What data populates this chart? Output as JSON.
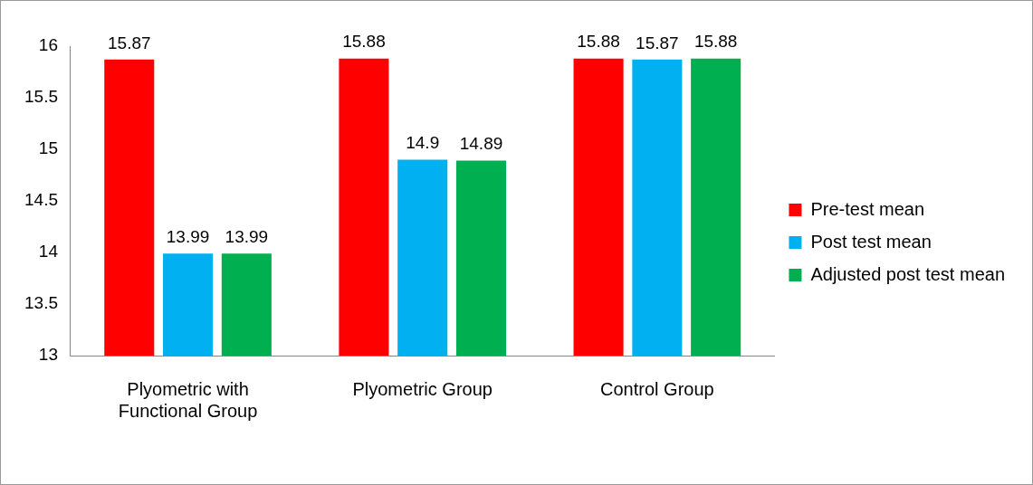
{
  "chart_data": {
    "type": "bar",
    "categories": [
      "Plyometric with Functional Group",
      "Plyometric Group",
      "Control Group"
    ],
    "series": [
      {
        "name": "Pre-test mean",
        "color": "#ff0000",
        "values": [
          15.87,
          15.88,
          15.88
        ]
      },
      {
        "name": "Post test mean",
        "color": "#00b0f0",
        "values": [
          13.99,
          14.9,
          15.87
        ]
      },
      {
        "name": "Adjusted post test mean",
        "color": "#00b050",
        "values": [
          13.99,
          14.89,
          15.88
        ]
      }
    ],
    "ylim": [
      13,
      16
    ],
    "yticks": [
      13,
      13.5,
      14,
      14.5,
      15,
      15.5,
      16
    ],
    "grid": false,
    "legend": "right",
    "data_labels": true
  }
}
